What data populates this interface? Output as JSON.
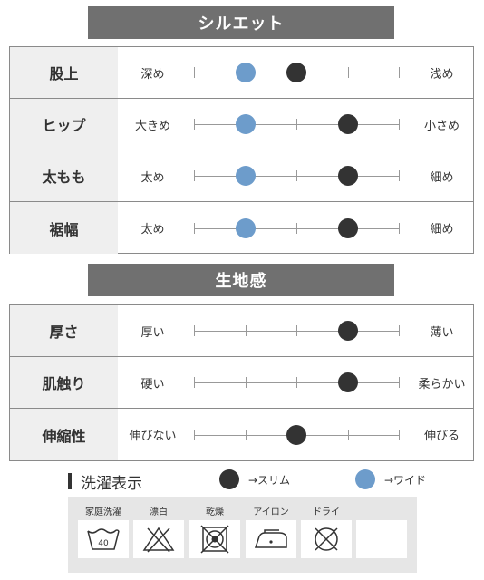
{
  "silhouette": {
    "header": "シルエット",
    "rows": [
      {
        "label": "股上",
        "left": "深め",
        "right": "浅め",
        "blue_step": 1,
        "black_step": 2
      },
      {
        "label": "ヒップ",
        "left": "大きめ",
        "right": "小さめ",
        "blue_step": 1,
        "black_step": 3
      },
      {
        "label": "太もも",
        "left": "太め",
        "right": "細め",
        "blue_step": 1,
        "black_step": 3
      },
      {
        "label": "裾幅",
        "left": "太め",
        "right": "細め",
        "blue_step": 1,
        "black_step": 3
      }
    ]
  },
  "fabric": {
    "header": "生地感",
    "rows": [
      {
        "label": "厚さ",
        "left": "厚い",
        "right": "薄い",
        "black_step": 3
      },
      {
        "label": "肌触り",
        "left": "硬い",
        "right": "柔らかい",
        "black_step": 3
      },
      {
        "label": "伸縮性",
        "left": "伸びない",
        "right": "伸びる",
        "black_step": 2
      }
    ]
  },
  "scale_steps": 5,
  "colors": {
    "black_dot": "#333333",
    "blue_dot": "#6d9ccb",
    "header_bg": "#707070"
  },
  "care": {
    "title": "洗濯表示",
    "legend": {
      "slim": "→スリム",
      "wide": "→ワイド"
    },
    "labels": [
      "家庭洗濯",
      "漂白",
      "乾燥",
      "アイロン",
      "ドライ",
      ""
    ],
    "wash_temp": "40",
    "icons": [
      "washtub-40-icon",
      "no-bleach-icon",
      "no-tumble-dry-icon",
      "iron-icon",
      "no-dryclean-icon",
      "blank"
    ]
  }
}
